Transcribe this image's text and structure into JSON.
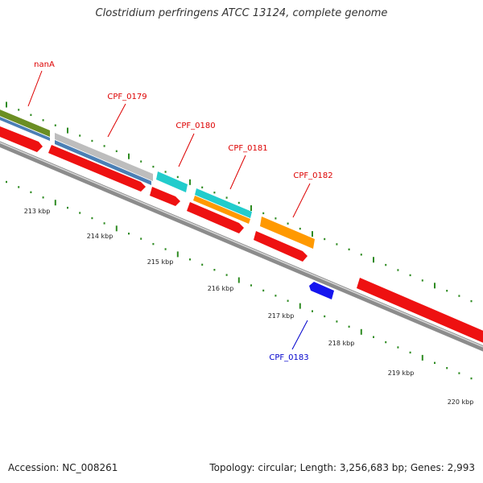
{
  "title": "Clostridium perfringens ATCC 13124, complete genome",
  "footer": {
    "accession": "Accession: NC_008261",
    "summary": "Topology: circular; Length: 3,256,683 bp; Genes: 2,993"
  },
  "colors": {
    "backbone": "#8c8c8c",
    "tick": "#2e8b22",
    "gene_label": "#dd0000",
    "gene_label_alt": "#0000cc",
    "red": "#ee1111",
    "blue": "#4a7fb5",
    "olive": "#6b8e23",
    "gray": "#bdbdbd",
    "cyan": "#22cccc",
    "orange": "#ff9900",
    "navy": "#1515ee"
  },
  "kbp_labels": [
    "213 kbp",
    "214 kbp",
    "215 kbp",
    "216 kbp",
    "217 kbp",
    "218 kbp",
    "219 kbp",
    "220 kbp"
  ],
  "gene_labels": [
    {
      "text": "nanA",
      "color": "gene_label"
    },
    {
      "text": "CPF_0179",
      "color": "gene_label"
    },
    {
      "text": "CPF_0180",
      "color": "gene_label"
    },
    {
      "text": "CPF_0181",
      "color": "gene_label"
    },
    {
      "text": "CPF_0182",
      "color": "gene_label"
    },
    {
      "text": "CPF_0183",
      "color": "gene_label_alt"
    }
  ]
}
